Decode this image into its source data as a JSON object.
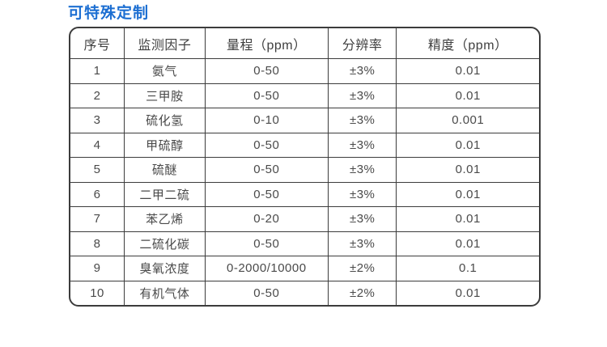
{
  "title": "可特殊定制",
  "colors": {
    "title_blue": "#1d6fd2",
    "table_border": "#3c3c3c",
    "cell_text": "#4a4a4a"
  },
  "table": {
    "headers": [
      "序号",
      "监测因子",
      "量程（ppm）",
      "分辨率",
      "精度（ppm）"
    ],
    "rows": [
      [
        "1",
        "氨气",
        "0-50",
        "±3%",
        "0.01"
      ],
      [
        "2",
        "三甲胺",
        "0-50",
        "±3%",
        "0.01"
      ],
      [
        "3",
        "硫化氢",
        "0-10",
        "±3%",
        "0.001"
      ],
      [
        "4",
        "甲硫醇",
        "0-50",
        "±3%",
        "0.01"
      ],
      [
        "5",
        "硫醚",
        "0-50",
        "±3%",
        "0.01"
      ],
      [
        "6",
        "二甲二硫",
        "0-50",
        "±3%",
        "0.01"
      ],
      [
        "7",
        "苯乙烯",
        "0-20",
        "±3%",
        "0.01"
      ],
      [
        "8",
        "二硫化碳",
        "0-50",
        "±3%",
        "0.01"
      ],
      [
        "9",
        "臭氧浓度",
        "0-2000/10000",
        "±2%",
        "0.1"
      ],
      [
        "10",
        "有机气体",
        "0-50",
        "±2%",
        "0.01"
      ]
    ]
  }
}
